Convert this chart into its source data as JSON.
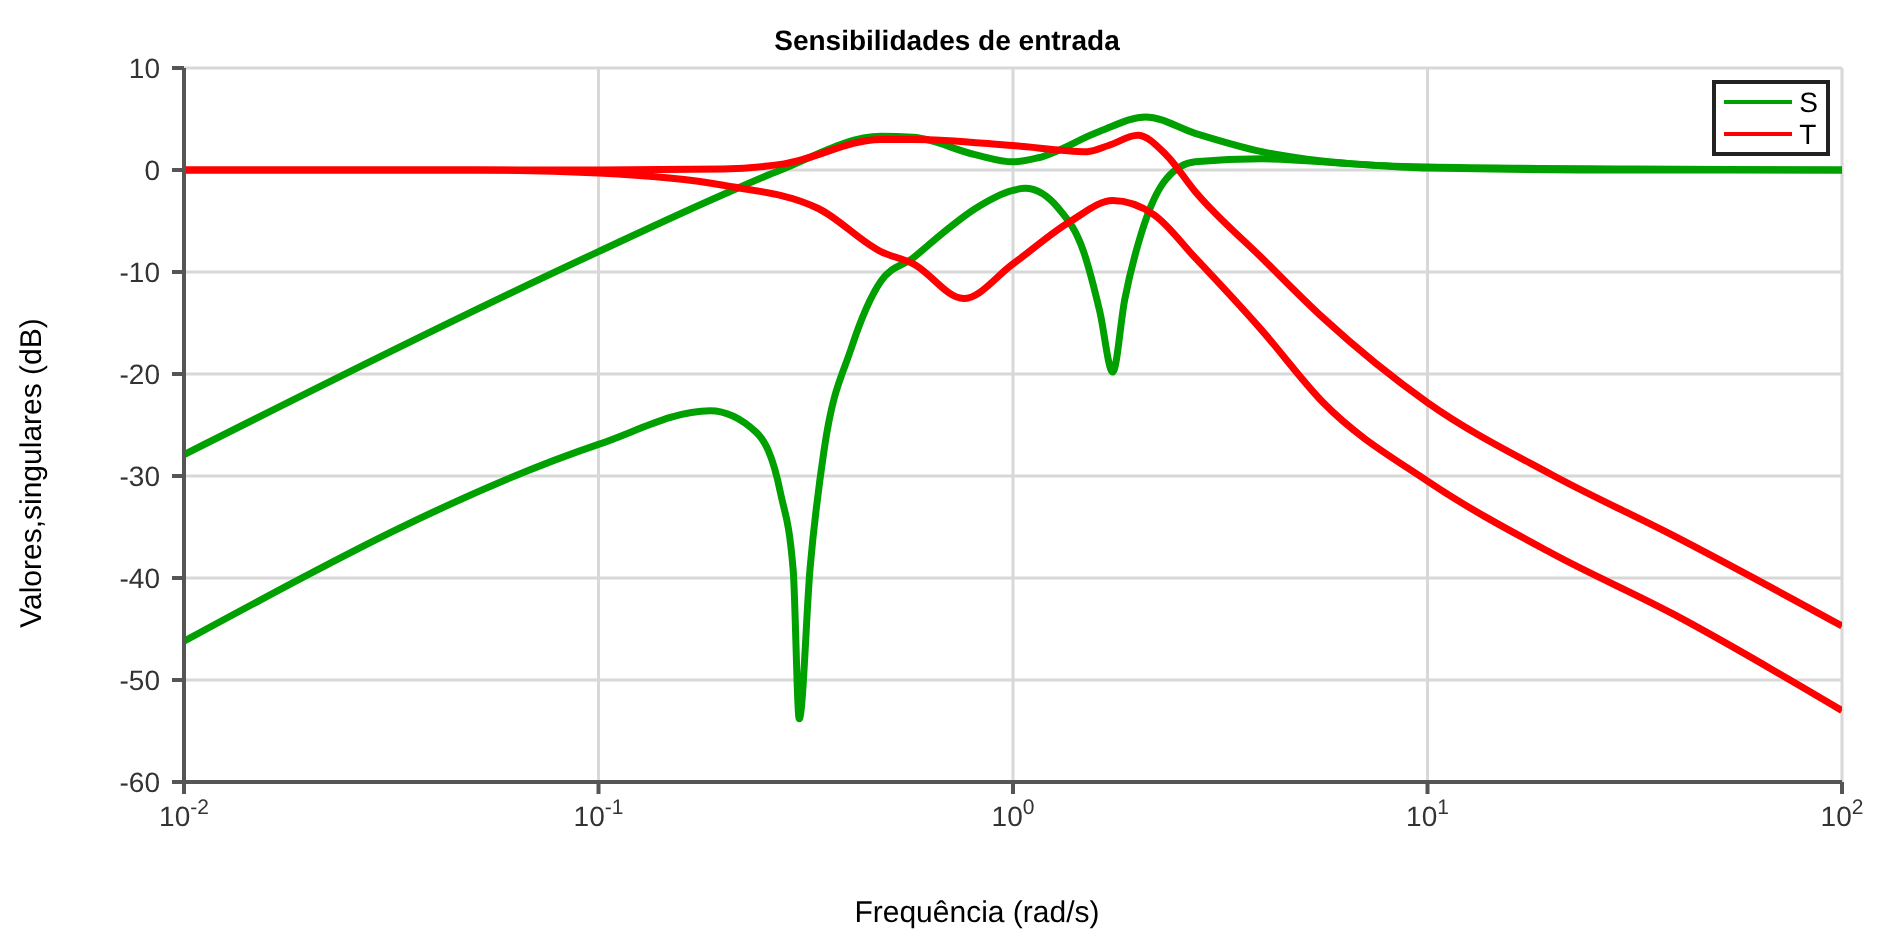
{
  "chart_data": {
    "type": "line",
    "title": "Sensibilidades de entrada",
    "xlabel": "Frequência (rad/s)",
    "ylabel": "Valores,singulares (dB)",
    "log": "x",
    "grid": true,
    "legend": "top right",
    "line_style": "solid",
    "marker": "none",
    "xlim": [
      0.01,
      100
    ],
    "xticks": [
      {
        "value": 0.01,
        "label": "10$^{-2}$"
      },
      {
        "value": 0.1,
        "label": "10$^{-1}$"
      },
      {
        "value": 1,
        "label": "10$^{0}$"
      },
      {
        "value": 10,
        "label": "10$^{1}$"
      },
      {
        "value": 100,
        "label": "10$^{2}$"
      }
    ],
    "ylim": [
      -60,
      10
    ],
    "yticks": [
      10,
      0,
      -10,
      -20,
      -30,
      -40,
      -50,
      -60
    ],
    "series": [
      {
        "name": "S",
        "color": "#00a000",
        "x": [
          0.01,
          0.1,
          0.2,
          0.275,
          0.48,
          0.575,
          0.81,
          1,
          1.15,
          1.62,
          2.09,
          2.75,
          3.98,
          6.6,
          10,
          31.6,
          100
        ],
        "values": [
          -27.9,
          -8,
          -2.4,
          0,
          3.3,
          3.2,
          1.5,
          0.8,
          1.2,
          3.8,
          5.2,
          3.6,
          1.8,
          0.6,
          0.3,
          0.1,
          0
        ]
      },
      {
        "color": "#00a000",
        "x": [
          0.01,
          0.1,
          0.186,
          0.24,
          0.275,
          0.295,
          0.305,
          0.324,
          0.35,
          0.407,
          0.48,
          0.575,
          0.676,
          0.81,
          1,
          1.07,
          1.29,
          1.48,
          1.62,
          1.74,
          1.86,
          2.04,
          2.34,
          2.75,
          3.98,
          6.6,
          10,
          31.6,
          100
        ],
        "values": [
          -46.2,
          -26.9,
          -23.6,
          -25.7,
          -31.7,
          -39.3,
          -53.8,
          -39,
          -27.5,
          -17.5,
          -10.9,
          -8.6,
          -6.2,
          -3.8,
          -2,
          -1.8,
          -3.8,
          -8,
          -13.9,
          -19.8,
          -12.7,
          -6.2,
          -0.9,
          0.8,
          1.1,
          0.6,
          0.2,
          0,
          0
        ]
      },
      {
        "name": "T",
        "color": "#ff0000",
        "x": [
          0.01,
          0.1,
          0.2,
          0.28,
          0.48,
          0.575,
          1,
          1.51,
          1.7,
          2,
          2.34,
          2.75,
          3.98,
          5.6,
          10,
          20,
          39,
          100
        ],
        "values": [
          0,
          0,
          0.1,
          0.6,
          3,
          3,
          2.4,
          1.8,
          2.4,
          3.4,
          1.5,
          -2.1,
          -8.6,
          -14.5,
          -22.8,
          -29.9,
          -35.8,
          -44.7
        ]
      },
      {
        "color": "#ff0000",
        "x": [
          0.01,
          0.05,
          0.1,
          0.2,
          0.34,
          0.48,
          0.575,
          0.76,
          1,
          1.38,
          1.74,
          2.19,
          2.75,
          3.98,
          5.6,
          10,
          20,
          39,
          100
        ],
        "values": [
          0,
          0,
          -0.3,
          -1.5,
          -3.8,
          -8,
          -9.2,
          -12.6,
          -9.2,
          -5,
          -3,
          -4.4,
          -8.6,
          -15.7,
          -22.8,
          -30.5,
          -37.6,
          -43.5,
          -53
        ]
      }
    ]
  }
}
